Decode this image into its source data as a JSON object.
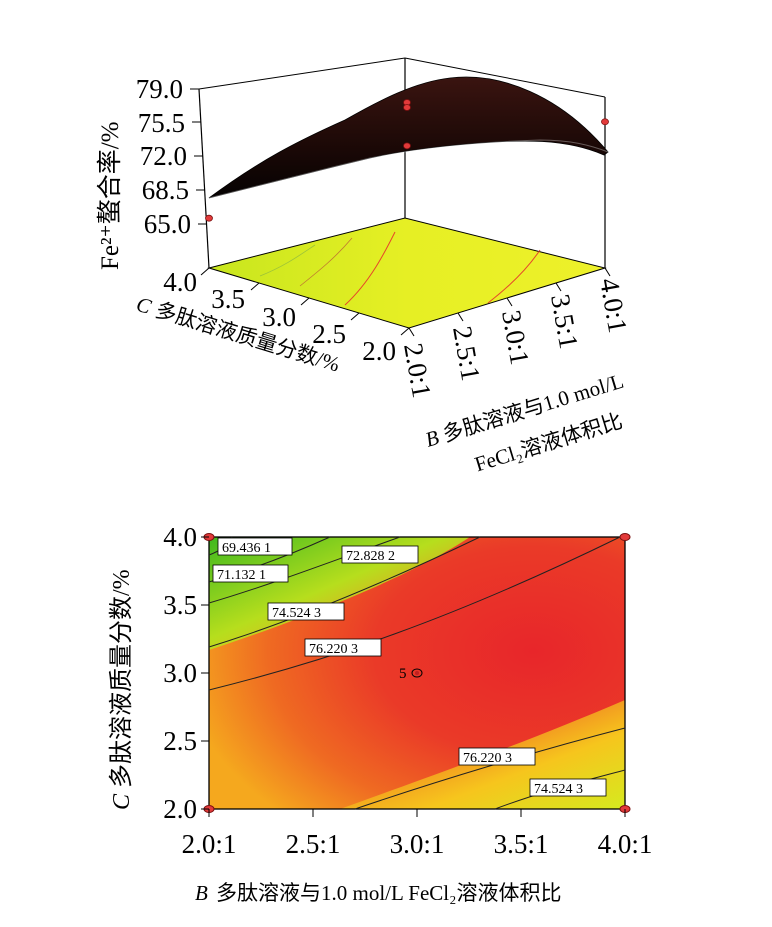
{
  "chart_data": [
    {
      "type": "surface",
      "zlabel": "Fe²⁺螯合率/%",
      "z_ticks": [
        "79.0",
        "75.5",
        "72.0",
        "68.5",
        "65.0"
      ],
      "y_ticks": [
        "4.0",
        "3.5",
        "3.0",
        "2.5",
        "2.0"
      ],
      "y_label_var": "C",
      "y_label": "多肽溶液质量分数/%",
      "x_ticks": [
        "2.0:1",
        "2.5:1",
        "3.0:1",
        "3.5:1",
        "4.0:1"
      ],
      "x_label_var": "B",
      "x_label_line1": "多肽溶液与1.0 mol/L",
      "x_label_line2": "FeCl₂溶液体积比",
      "zlim": [
        65.0,
        79.0
      ],
      "design_points": [
        {
          "x": 2.0,
          "y": 4.0,
          "z": 65.5
        },
        {
          "x": 4.0,
          "y": 2.0,
          "z": 75.5
        },
        {
          "x": 3.0,
          "y": 3.0,
          "z": 77.5
        },
        {
          "x": 3.0,
          "y": 3.0,
          "z": 73.0
        }
      ]
    },
    {
      "type": "contour",
      "xlabel_var": "B",
      "xlabel": "多肽溶液与1.0 mol/L FeCl₂溶液体积比",
      "ylabel_var": "C",
      "ylabel": "多肽溶液质量分数/%",
      "x_ticks": [
        "2.0:1",
        "2.5:1",
        "3.0:1",
        "3.5:1",
        "4.0:1"
      ],
      "y_ticks": [
        "4.0",
        "3.5",
        "3.0",
        "2.5",
        "2.0"
      ],
      "xlim": [
        2.0,
        4.0
      ],
      "ylim": [
        2.0,
        4.0
      ],
      "contour_labels": [
        "69.436 1",
        "71.132 1",
        "72.828 2",
        "74.524 3",
        "76.220 3",
        "76.220 3",
        "74.524 3"
      ],
      "center_point_label": "5",
      "design_points": [
        {
          "x": 2.0,
          "y": 4.0
        },
        {
          "x": 4.0,
          "y": 4.0
        },
        {
          "x": 2.0,
          "y": 2.0
        },
        {
          "x": 4.0,
          "y": 2.0
        },
        {
          "x": 3.0,
          "y": 3.0
        }
      ]
    }
  ]
}
